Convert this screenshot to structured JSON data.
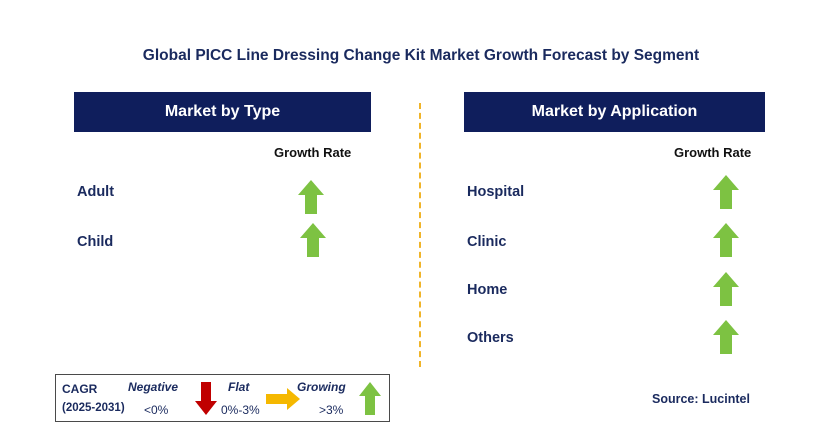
{
  "title": "Global PICC Line Dressing Change Kit Market Growth Forecast by Segment",
  "left_panel": {
    "header": "Market by Type",
    "growth_label": "Growth Rate",
    "rows": [
      {
        "label": "Adult",
        "trend": "growing"
      },
      {
        "label": "Child",
        "trend": "growing"
      }
    ]
  },
  "right_panel": {
    "header": "Market by Application",
    "growth_label": "Growth Rate",
    "rows": [
      {
        "label": "Hospital",
        "trend": "growing"
      },
      {
        "label": "Clinic",
        "trend": "growing"
      },
      {
        "label": "Home",
        "trend": "growing"
      },
      {
        "label": "Others",
        "trend": "growing"
      }
    ]
  },
  "legend": {
    "cagr": "CAGR",
    "period": "(2025-2031)",
    "negative_label": "Negative",
    "negative_range": "<0%",
    "flat_label": "Flat",
    "flat_range": "0%-3%",
    "growing_label": "Growing",
    "growing_range": ">3%"
  },
  "source": "Source: Lucintel",
  "colors": {
    "header_bg": "#0f1e5c",
    "text_navy": "#1a2a5e",
    "arrow_green": "#7dc242",
    "arrow_red": "#c00000",
    "arrow_orange": "#f5b800",
    "divider": "#f0b429"
  },
  "icons": {
    "growing": "green-up-arrow-icon",
    "negative": "red-down-arrow-icon",
    "flat": "orange-right-arrow-icon"
  }
}
